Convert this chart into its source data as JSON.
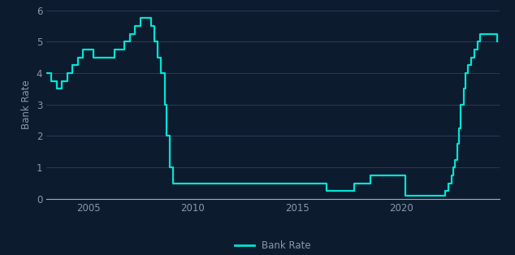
{
  "ylabel": "Bank Rate",
  "line_color": "#00e5d4",
  "background_color": "#0d1b2e",
  "axes_background": "#0d1b2e",
  "grid_color": "#253b5e",
  "tick_color": "#8899aa",
  "legend_label": "Bank Rate",
  "ylim": [
    0,
    6
  ],
  "yticks": [
    0,
    1,
    2,
    3,
    4,
    5,
    6
  ],
  "xticks": [
    2005,
    2010,
    2015,
    2020
  ],
  "line_width": 1.6,
  "xlim_left": 2003.0,
  "xlim_right": 2024.7,
  "dates": [
    2003.0,
    2003.25,
    2003.5,
    2003.75,
    2004.0,
    2004.25,
    2004.5,
    2004.75,
    2005.0,
    2005.25,
    2005.5,
    2006.0,
    2006.25,
    2006.5,
    2006.75,
    2007.0,
    2007.25,
    2007.5,
    2008.0,
    2008.17,
    2008.33,
    2008.5,
    2008.67,
    2008.75,
    2008.92,
    2009.0,
    2009.08,
    2009.25,
    2013.0,
    2016.42,
    2017.75,
    2018.5,
    2019.5,
    2020.17,
    2020.25,
    2021.83,
    2022.08,
    2022.25,
    2022.42,
    2022.5,
    2022.58,
    2022.67,
    2022.75,
    2022.83,
    2022.92,
    2023.0,
    2023.08,
    2023.17,
    2023.33,
    2023.5,
    2023.67,
    2023.75,
    2024.17,
    2024.58
  ],
  "rates": [
    4.0,
    3.75,
    3.5,
    3.75,
    4.0,
    4.25,
    4.5,
    4.75,
    4.75,
    4.5,
    4.5,
    4.5,
    4.75,
    4.75,
    5.0,
    5.25,
    5.5,
    5.75,
    5.5,
    5.0,
    4.5,
    4.0,
    3.0,
    2.0,
    1.0,
    1.0,
    0.5,
    0.5,
    0.5,
    0.25,
    0.5,
    0.75,
    0.75,
    0.1,
    0.1,
    0.1,
    0.25,
    0.5,
    0.75,
    1.0,
    1.25,
    1.75,
    2.25,
    3.0,
    3.0,
    3.5,
    4.0,
    4.25,
    4.5,
    4.75,
    5.0,
    5.25,
    5.25,
    5.0
  ]
}
